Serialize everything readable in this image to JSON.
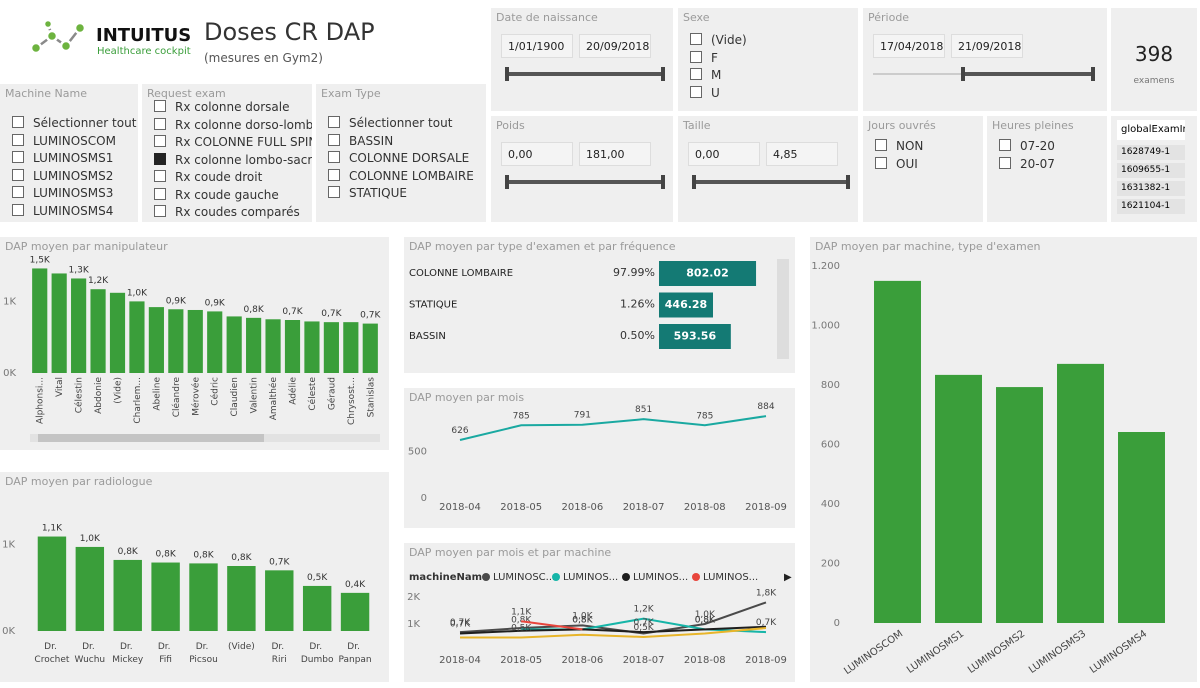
{
  "header": {
    "brand": "INTUITUS",
    "tagline": "Healthcare cockpit",
    "title": "Doses CR DAP",
    "subtitle": "(mesures en Gym2)"
  },
  "slicers": [
    {
      "title": "Machine Name",
      "items": [
        "Sélectionner tout",
        "LUMINOSCOM",
        "LUMINOSMS1",
        "LUMINOSMS2",
        "LUMINOSMS3",
        "LUMINOSMS4"
      ]
    },
    {
      "title": "Request exam",
      "items": [
        "Rx colonne dorsale",
        "Rx colonne dorso-lomb...",
        "Rx COLONNE FULL SPINE",
        "Rx colonne lombo-sacrée",
        "Rx coude droit",
        "Rx coude gauche",
        "Rx coudes comparés"
      ],
      "selected": 3
    },
    {
      "title": "Exam Type",
      "items": [
        "Sélectionner tout",
        "BASSIN",
        "COLONNE DORSALE",
        "COLONNE LOMBAIRE",
        "STATIQUE"
      ]
    },
    {
      "title": "Sexe",
      "items": [
        "(Vide)",
        "F",
        "M",
        "U"
      ]
    },
    {
      "title": "Jours ouvrés",
      "items": [
        "NON",
        "OUI"
      ]
    },
    {
      "title": "Heures pleines",
      "items": [
        "07-20",
        "20-07"
      ]
    }
  ],
  "range_slicers": [
    {
      "title": "Date de naissance",
      "from": "1/01/1900",
      "to": "20/09/2018"
    },
    {
      "title": "Période",
      "from": "17/04/2018",
      "to": "21/09/2018"
    },
    {
      "title": "Poids",
      "from": "0,00",
      "to": "181,00"
    },
    {
      "title": "Taille",
      "from": "0,00",
      "to": "4,85"
    }
  ],
  "card": {
    "value": 398,
    "label": "examens"
  },
  "table": {
    "header": "globalExamIr",
    "rows": [
      "1628749-1",
      "1609655-1",
      "1631382-1",
      "1621104-1"
    ]
  },
  "chart_data": [
    {
      "type": "bar",
      "title": "DAP moyen par manipulateur",
      "categories": [
        "Alphonsi...",
        "Vital",
        "Célestin",
        "Abdonie",
        "(Vide)",
        "Charlem...",
        "Abeline",
        "Cléandre",
        "Mérovée",
        "Cédric",
        "Claudien",
        "Valentin",
        "Amalthée",
        "Adélie",
        "Céleste",
        "Géraud",
        "Chrysost...",
        "Stanislas"
      ],
      "values": [
        1460,
        1390,
        1320,
        1170,
        1120,
        1000,
        920,
        890,
        880,
        860,
        790,
        770,
        750,
        740,
        720,
        710,
        710,
        690
      ],
      "value_labels": [
        "1,5K",
        null,
        "1,3K",
        "1,2K",
        null,
        "1,0K",
        null,
        "0,9K",
        null,
        "0,9K",
        null,
        "0,8K",
        null,
        "0,7K",
        null,
        "0,7K",
        null,
        "0,7K"
      ],
      "color": "#3a9e3a",
      "ylim": [
        0,
        1550
      ],
      "yticks": [
        {
          "value": 0,
          "label": "0K"
        },
        {
          "value": 1000,
          "label": "1K"
        }
      ],
      "grid": false
    },
    {
      "type": "bar",
      "title": "DAP moyen par radiologue",
      "categories": [
        "Dr. Crochet",
        "Dr. Wuchu",
        "Dr. Mickey",
        "Dr. Fifi",
        "Dr. Picsou",
        "(Vide)",
        "Dr. Riri",
        "Dr. Dumbo",
        "Dr. Panpan"
      ],
      "values": [
        1090,
        970,
        820,
        790,
        780,
        750,
        700,
        520,
        440
      ],
      "value_labels": [
        "1,1K",
        "1,0K",
        "0,8K",
        "0,8K",
        "0,8K",
        "0,8K",
        "0,7K",
        "0,5K",
        "0,4K"
      ],
      "color": "#3a9e3a",
      "ylim": [
        0,
        1200
      ],
      "yticks": [
        {
          "value": 0,
          "label": "0K"
        },
        {
          "value": 1000,
          "label": "1K"
        }
      ],
      "grid": false
    },
    {
      "type": "bar",
      "orientation": "horizontal",
      "title": "DAP moyen par type d'examen et par fréquence",
      "categories": [
        "COLONNE LOMBAIRE",
        "STATIQUE",
        "BASSIN"
      ],
      "frequency": [
        "97.99%",
        "1.26%",
        "0.50%"
      ],
      "values": [
        802.02,
        446.28,
        593.56
      ],
      "color": "#147a74"
    },
    {
      "type": "line",
      "title": "DAP moyen par mois",
      "categories": [
        "2018-04",
        "2018-05",
        "2018-06",
        "2018-07",
        "2018-08",
        "2018-09"
      ],
      "values": [
        626,
        785,
        791,
        851,
        785,
        884
      ],
      "color": "#1aa9a1",
      "ylim": [
        0,
        950
      ],
      "yticks": [
        0,
        500
      ],
      "grid": false
    },
    {
      "type": "line",
      "title": "DAP moyen par mois et par machine",
      "legend_title": "machineName",
      "categories": [
        "2018-04",
        "2018-05",
        "2018-06",
        "2018-07",
        "2018-08",
        "2018-09"
      ],
      "series": [
        {
          "name": "LUMINOSC...",
          "color": "#4a4a4a",
          "values": [
            700,
            850,
            950,
            650,
            1000,
            1800
          ],
          "value_labels": [
            "0,7K",
            null,
            "1,0K",
            null,
            "1,0K",
            "1,8K"
          ]
        },
        {
          "name": "LUMINOS...",
          "color": "#16b5a8",
          "values": [
            null,
            800,
            800,
            1200,
            800,
            700
          ],
          "value_labels": [
            null,
            "0,8K",
            null,
            "1,2K",
            "0,8K",
            "0,7K"
          ]
        },
        {
          "name": "LUMINOS...",
          "color": "#1e1e1e",
          "values": [
            650,
            750,
            800,
            700,
            800,
            900
          ],
          "value_labels": [
            "0,7K",
            null,
            "0,8K",
            "0,7K",
            "0,8K",
            null
          ]
        },
        {
          "name": "LUMINOS...",
          "color": "#e8453c",
          "values": [
            null,
            1100,
            800,
            null,
            null,
            null
          ],
          "value_labels": [
            null,
            "1,1K",
            "0,8K",
            null,
            null,
            null
          ]
        },
        {
          "name": null,
          "color": "#e8b52a",
          "values": [
            500,
            500,
            600,
            520,
            650,
            850
          ],
          "value_labels": [
            null,
            "0,5K",
            null,
            "0,5K",
            null,
            null
          ]
        }
      ],
      "ylim": [
        0,
        2000
      ],
      "yticks": [
        {
          "value": 1000,
          "label": "1K"
        },
        {
          "value": 2000,
          "label": "2K"
        }
      ],
      "grid": false
    },
    {
      "type": "bar",
      "title": "DAP moyen par machine, type d'examen",
      "categories": [
        "LUMINOSCOM",
        "LUMINOSMS1",
        "LUMINOSMS2",
        "LUMINOSMS3",
        "LUMINOSMS4"
      ],
      "values": [
        1150,
        834,
        793,
        871,
        642
      ],
      "color": "#3a9e3a",
      "ylim": [
        0,
        1200
      ],
      "yticks": [
        0,
        200,
        400,
        600,
        800,
        {
          "value": 1000,
          "label": "1.000"
        },
        {
          "value": 1200,
          "label": "1.200"
        }
      ],
      "grid": false
    }
  ]
}
